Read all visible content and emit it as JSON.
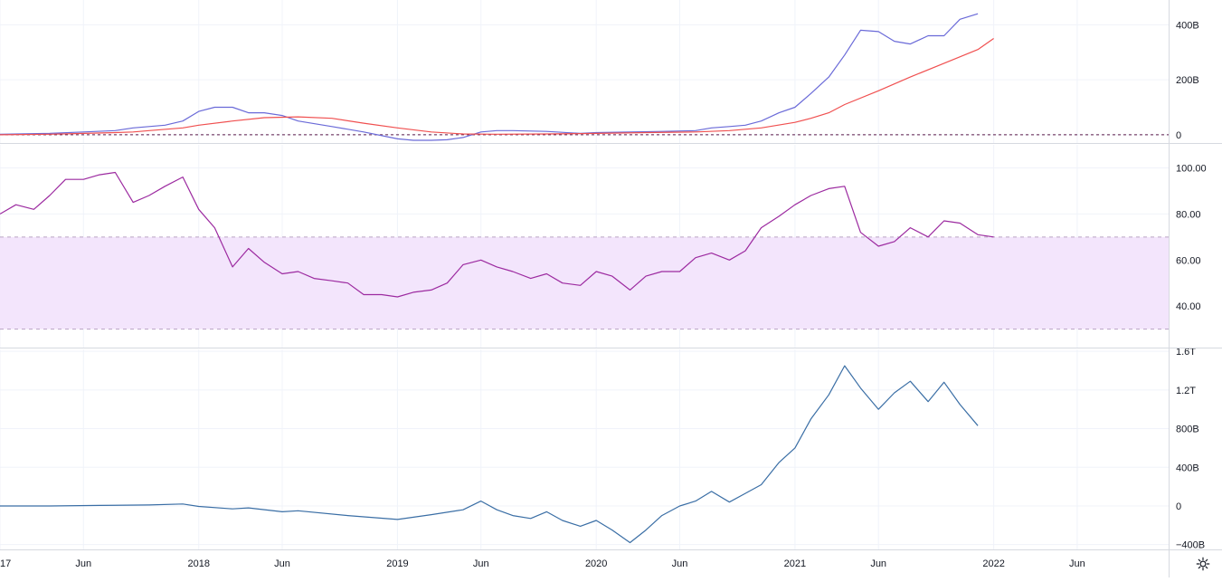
{
  "colors": {
    "macd": "#6a6ad8",
    "signal": "#f05050",
    "rsi": "#9c2aa0",
    "rsi_band": "#f3e5fc",
    "flow": "#3a6ea5",
    "grid": "#f0f3fa",
    "separator": "#d6d9e0",
    "axis_text": "#131722"
  },
  "x_axis": {
    "ticks": [
      {
        "t": 2017.0,
        "label": "17"
      },
      {
        "t": 2017.42,
        "label": "Jun"
      },
      {
        "t": 2018.0,
        "label": "2018"
      },
      {
        "t": 2018.42,
        "label": "Jun"
      },
      {
        "t": 2019.0,
        "label": "2019"
      },
      {
        "t": 2019.42,
        "label": "Jun"
      },
      {
        "t": 2020.0,
        "label": "2020"
      },
      {
        "t": 2020.42,
        "label": "Jun"
      },
      {
        "t": 2021.0,
        "label": "2021"
      },
      {
        "t": 2021.42,
        "label": "Jun"
      },
      {
        "t": 2022.0,
        "label": "2022"
      },
      {
        "t": 2022.42,
        "label": "Jun"
      }
    ],
    "range": [
      2017.0,
      2022.88
    ]
  },
  "chart_data": [
    {
      "type": "line",
      "pane": "macd",
      "ylim": [
        -30,
        490
      ],
      "y_ticks": [
        {
          "v": 400,
          "label": "400B"
        },
        {
          "v": 200,
          "label": "200B"
        },
        {
          "v": 0,
          "label": "0"
        }
      ],
      "zero_line": 0,
      "series": [
        {
          "color_key": "macd",
          "x": [
            2017.0,
            2017.25,
            2017.42,
            2017.58,
            2017.67,
            2017.75,
            2017.83,
            2017.92,
            2018.0,
            2018.08,
            2018.17,
            2018.25,
            2018.33,
            2018.42,
            2018.5,
            2018.67,
            2018.83,
            2019.0,
            2019.08,
            2019.17,
            2019.25,
            2019.33,
            2019.42,
            2019.5,
            2019.58,
            2019.75,
            2019.92,
            2020.0,
            2020.17,
            2020.33,
            2020.5,
            2020.58,
            2020.67,
            2020.75,
            2020.83,
            2020.92,
            2021.0,
            2021.08,
            2021.17,
            2021.25,
            2021.33,
            2021.42,
            2021.5,
            2021.58,
            2021.67,
            2021.75,
            2021.83,
            2021.92
          ],
          "y": [
            2,
            5,
            10,
            15,
            25,
            30,
            35,
            50,
            85,
            100,
            100,
            80,
            80,
            70,
            50,
            30,
            10,
            -15,
            -20,
            -20,
            -18,
            -10,
            10,
            15,
            15,
            12,
            5,
            8,
            10,
            12,
            15,
            25,
            30,
            35,
            50,
            80,
            100,
            150,
            210,
            290,
            380,
            375,
            340,
            330,
            360,
            360,
            420,
            440
          ]
        },
        {
          "color_key": "signal",
          "x": [
            2017.0,
            2017.25,
            2017.42,
            2017.58,
            2017.67,
            2017.75,
            2017.92,
            2018.0,
            2018.17,
            2018.33,
            2018.5,
            2018.67,
            2018.83,
            2019.0,
            2019.17,
            2019.33,
            2019.5,
            2019.75,
            2020.0,
            2020.25,
            2020.5,
            2020.67,
            2020.83,
            2021.0,
            2021.08,
            2021.17,
            2021.25,
            2021.42,
            2021.58,
            2021.75,
            2021.92,
            2022.0
          ],
          "y": [
            0,
            2,
            5,
            8,
            10,
            15,
            25,
            35,
            50,
            62,
            65,
            60,
            42,
            25,
            10,
            3,
            2,
            3,
            5,
            8,
            10,
            15,
            25,
            45,
            60,
            80,
            110,
            160,
            210,
            260,
            310,
            350
          ]
        }
      ]
    },
    {
      "type": "line",
      "pane": "rsi",
      "ylim": [
        22,
        110
      ],
      "y_ticks": [
        {
          "v": 100,
          "label": "100.00"
        },
        {
          "v": 80,
          "label": "80.00"
        },
        {
          "v": 60,
          "label": "60.00"
        },
        {
          "v": 40,
          "label": "40.00"
        }
      ],
      "band": [
        30,
        70
      ],
      "series": [
        {
          "color_key": "rsi",
          "x": [
            2017.0,
            2017.08,
            2017.17,
            2017.25,
            2017.33,
            2017.42,
            2017.5,
            2017.58,
            2017.67,
            2017.75,
            2017.83,
            2017.92,
            2018.0,
            2018.08,
            2018.17,
            2018.25,
            2018.33,
            2018.42,
            2018.5,
            2018.58,
            2018.67,
            2018.75,
            2018.83,
            2018.92,
            2019.0,
            2019.08,
            2019.17,
            2019.25,
            2019.33,
            2019.42,
            2019.5,
            2019.58,
            2019.67,
            2019.75,
            2019.83,
            2019.92,
            2020.0,
            2020.08,
            2020.17,
            2020.25,
            2020.33,
            2020.42,
            2020.5,
            2020.58,
            2020.67,
            2020.75,
            2020.83,
            2020.92,
            2021.0,
            2021.08,
            2021.17,
            2021.25,
            2021.33,
            2021.42,
            2021.5,
            2021.58,
            2021.67,
            2021.75,
            2021.83,
            2021.92,
            2022.0
          ],
          "y": [
            80,
            84,
            82,
            88,
            95,
            95,
            97,
            98,
            85,
            88,
            92,
            96,
            82,
            74,
            57,
            65,
            59,
            54,
            55,
            52,
            51,
            50,
            45,
            45,
            44,
            46,
            47,
            50,
            58,
            60,
            57,
            55,
            52,
            54,
            50,
            49,
            55,
            53,
            47,
            53,
            55,
            55,
            61,
            63,
            60,
            64,
            74,
            79,
            84,
            88,
            91,
            92,
            72,
            66,
            68,
            74,
            70,
            77,
            76,
            71,
            70
          ]
        }
      ]
    },
    {
      "type": "line",
      "pane": "flow",
      "ylim": [
        -450,
        1620
      ],
      "y_ticks": [
        {
          "v": 1600,
          "label": "1.6T"
        },
        {
          "v": 1200,
          "label": "1.2T"
        },
        {
          "v": 800,
          "label": "800B"
        },
        {
          "v": 400,
          "label": "400B"
        },
        {
          "v": 0,
          "label": "0"
        },
        {
          "v": -400,
          "label": "−400B"
        }
      ],
      "series": [
        {
          "color_key": "flow",
          "x": [
            2017.0,
            2017.25,
            2017.5,
            2017.75,
            2017.92,
            2018.0,
            2018.17,
            2018.25,
            2018.42,
            2018.5,
            2018.75,
            2019.0,
            2019.17,
            2019.33,
            2019.42,
            2019.5,
            2019.58,
            2019.67,
            2019.75,
            2019.83,
            2019.92,
            2020.0,
            2020.08,
            2020.17,
            2020.25,
            2020.33,
            2020.42,
            2020.5,
            2020.58,
            2020.67,
            2020.75,
            2020.83,
            2020.92,
            2021.0,
            2021.08,
            2021.17,
            2021.25,
            2021.33,
            2021.42,
            2021.5,
            2021.58,
            2021.67,
            2021.75,
            2021.83,
            2021.92
          ],
          "y": [
            0,
            0,
            5,
            10,
            20,
            -5,
            -30,
            -20,
            -60,
            -50,
            -100,
            -140,
            -90,
            -40,
            50,
            -40,
            -100,
            -130,
            -60,
            -150,
            -210,
            -150,
            -250,
            -380,
            -250,
            -100,
            0,
            50,
            150,
            40,
            130,
            220,
            450,
            600,
            900,
            1150,
            1450,
            1220,
            1000,
            1170,
            1290,
            1080,
            1280,
            1050,
            830
          ]
        }
      ]
    }
  ]
}
